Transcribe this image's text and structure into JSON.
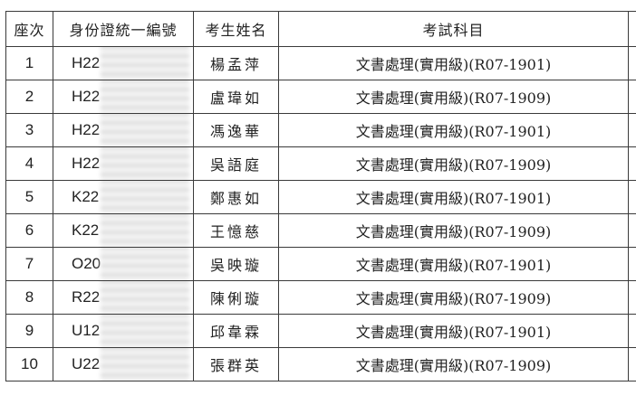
{
  "headers": {
    "seat": "座次",
    "id": "身份證統一編號",
    "name": "考生姓名",
    "subject": "考試科目"
  },
  "rows": [
    {
      "seat": "1",
      "id_prefix": "H22",
      "name": "楊孟萍",
      "subject": "文書處理(實用級)(R07-1901)"
    },
    {
      "seat": "2",
      "id_prefix": "H22",
      "name": "盧瑋如",
      "subject": "文書處理(實用級)(R07-1909)"
    },
    {
      "seat": "3",
      "id_prefix": "H22",
      "name": "馮逸華",
      "subject": "文書處理(實用級)(R07-1901)"
    },
    {
      "seat": "4",
      "id_prefix": "H22",
      "name": "吳語庭",
      "subject": "文書處理(實用級)(R07-1909)"
    },
    {
      "seat": "5",
      "id_prefix": "K22",
      "name": "鄭惠如",
      "subject": "文書處理(實用級)(R07-1901)"
    },
    {
      "seat": "6",
      "id_prefix": "K22",
      "name": "王憶慈",
      "subject": "文書處理(實用級)(R07-1909)"
    },
    {
      "seat": "7",
      "id_prefix": "O20",
      "name": "吳映璇",
      "subject": "文書處理(實用級)(R07-1901)"
    },
    {
      "seat": "8",
      "id_prefix": "R22",
      "name": "陳俐璇",
      "subject": "文書處理(實用級)(R07-1909)"
    },
    {
      "seat": "9",
      "id_prefix": "U12",
      "name": "邱韋霖",
      "subject": "文書處理(實用級)(R07-1901)"
    },
    {
      "seat": "10",
      "id_prefix": "U22",
      "name": "張群英",
      "subject": "文書處理(實用級)(R07-1909)"
    }
  ]
}
